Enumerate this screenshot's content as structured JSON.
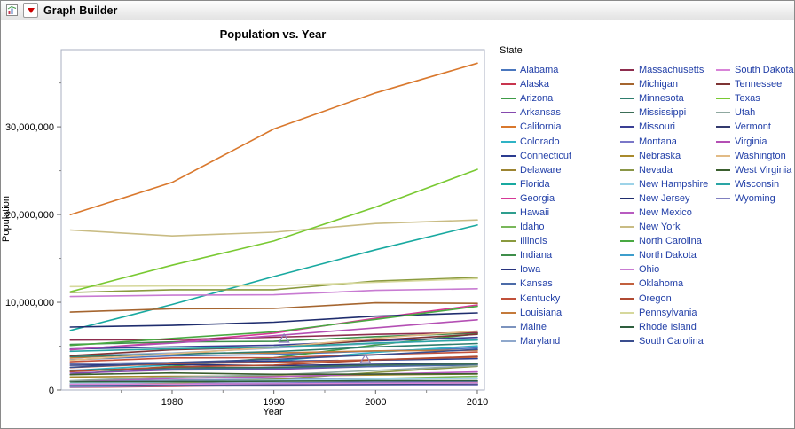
{
  "window": {
    "title": "Graph Builder"
  },
  "colors": {
    "red_triangle": "#CC0000",
    "legend_text": "#2340A8",
    "plot_frame": "#A8AFC0"
  },
  "chart_data": {
    "type": "line",
    "title": "Population vs. Year",
    "xlabel": "Year",
    "ylabel": "Population",
    "legend_title": "State",
    "legend_position": "right",
    "grid": false,
    "xlim": [
      1969.1,
      2010.7
    ],
    "ylim": [
      0,
      38800000
    ],
    "x_ticks": [
      1980,
      1990,
      2000,
      2010
    ],
    "x_tick_labels": [
      "1980",
      "1990",
      "2000",
      "2010"
    ],
    "x_minor_ticks": [
      1975,
      1985,
      1995,
      2005
    ],
    "y_ticks": [
      0,
      10000000,
      20000000,
      30000000
    ],
    "y_tick_labels": [
      "0",
      "10,000,000",
      "20,000,000",
      "30,000,000"
    ],
    "x": [
      1970,
      1980,
      1990,
      2000,
      2010
    ],
    "series": [
      {
        "name": "Alabama",
        "color": "#4A77BE",
        "values": [
          3444000,
          3894000,
          4040000,
          4447000,
          4780000
        ]
      },
      {
        "name": "Alaska",
        "color": "#C8354E",
        "values": [
          300000,
          402000,
          550000,
          627000,
          710000
        ]
      },
      {
        "name": "Arizona",
        "color": "#3E9B47",
        "values": [
          1771000,
          2718000,
          3665000,
          5131000,
          6392000
        ]
      },
      {
        "name": "Arkansas",
        "color": "#8549AE",
        "values": [
          1923000,
          2286000,
          2351000,
          2673000,
          2916000
        ]
      },
      {
        "name": "California",
        "color": "#D9782D",
        "values": [
          19971000,
          23668000,
          29760000,
          33872000,
          37254000
        ]
      },
      {
        "name": "Colorado",
        "color": "#2FB3C5",
        "values": [
          2207000,
          2890000,
          3294000,
          4301000,
          5029000
        ]
      },
      {
        "name": "Connecticut",
        "color": "#2B3C90",
        "values": [
          3032000,
          3108000,
          3287000,
          3406000,
          3574000
        ]
      },
      {
        "name": "Delaware",
        "color": "#9C8431",
        "values": [
          548000,
          594000,
          666000,
          784000,
          898000
        ]
      },
      {
        "name": "Florida",
        "color": "#18A9A0",
        "values": [
          6789000,
          9746000,
          12938000,
          15982000,
          18801000
        ]
      },
      {
        "name": "Georgia",
        "color": "#D63897",
        "values": [
          4588000,
          5463000,
          6478000,
          8186000,
          9688000
        ]
      },
      {
        "name": "Hawaii",
        "color": "#2E9E8E",
        "values": [
          770000,
          965000,
          1108000,
          1212000,
          1360000
        ]
      },
      {
        "name": "Idaho",
        "color": "#79B75A",
        "values": [
          713000,
          944000,
          1007000,
          1294000,
          1568000
        ]
      },
      {
        "name": "Illinois",
        "color": "#8A9A3E",
        "values": [
          11114000,
          11427000,
          11431000,
          12419000,
          12831000
        ]
      },
      {
        "name": "Indiana",
        "color": "#3E8E4A",
        "values": [
          5195000,
          5490000,
          5544000,
          6080000,
          6484000
        ]
      },
      {
        "name": "Iowa",
        "color": "#28337E",
        "values": [
          2825000,
          2914000,
          2777000,
          2926000,
          3046000
        ]
      },
      {
        "name": "Kansas",
        "color": "#4C6BA8",
        "values": [
          2249000,
          2364000,
          2478000,
          2688000,
          2853000
        ]
      },
      {
        "name": "Kentucky",
        "color": "#C1503A",
        "values": [
          3221000,
          3661000,
          3685000,
          4042000,
          4339000
        ]
      },
      {
        "name": "Louisiana",
        "color": "#C47A3B",
        "values": [
          3645000,
          4206000,
          4220000,
          4469000,
          4533000
        ]
      },
      {
        "name": "Maine",
        "color": "#7C93BE",
        "values": [
          994000,
          1125000,
          1228000,
          1275000,
          1328000
        ]
      },
      {
        "name": "Maryland",
        "color": "#8FA8CC",
        "values": [
          3924000,
          4217000,
          4781000,
          5296000,
          5774000
        ]
      },
      {
        "name": "Massachusetts",
        "color": "#8E2D4E",
        "values": [
          5689000,
          5737000,
          6016000,
          6349000,
          6548000
        ]
      },
      {
        "name": "Michigan",
        "color": "#A5652F",
        "values": [
          8882000,
          9262000,
          9295000,
          9938000,
          9884000
        ]
      },
      {
        "name": "Minnesota",
        "color": "#2E7D6E",
        "values": [
          3806000,
          4076000,
          4376000,
          4919000,
          5304000
        ]
      },
      {
        "name": "Mississippi",
        "color": "#3C6E57",
        "values": [
          2217000,
          2521000,
          2573000,
          2845000,
          2967000
        ]
      },
      {
        "name": "Missouri",
        "color": "#3A3F94",
        "values": [
          4678000,
          4917000,
          5117000,
          5595000,
          5989000
        ]
      },
      {
        "name": "Montana",
        "color": "#7A77C8",
        "values": [
          694000,
          787000,
          799000,
          902000,
          989000
        ]
      },
      {
        "name": "Nebraska",
        "color": "#A98A2C",
        "values": [
          1485000,
          1570000,
          1578000,
          1711000,
          1826000
        ]
      },
      {
        "name": "Nevada",
        "color": "#8A9646",
        "values": [
          489000,
          800000,
          1202000,
          1998000,
          2701000
        ]
      },
      {
        "name": "New Hampshire",
        "color": "#9DD3E8",
        "values": [
          738000,
          921000,
          1109000,
          1236000,
          1316000
        ]
      },
      {
        "name": "New Jersey",
        "color": "#1F2D6E",
        "values": [
          7171000,
          7365000,
          7730000,
          8414000,
          8792000
        ]
      },
      {
        "name": "New Mexico",
        "color": "#B85BC0",
        "values": [
          1017000,
          1303000,
          1515000,
          1819000,
          2059000
        ]
      },
      {
        "name": "New York",
        "color": "#C9BC84",
        "values": [
          18241000,
          17558000,
          17990000,
          18976000,
          19378000
        ]
      },
      {
        "name": "North Carolina",
        "color": "#49A942",
        "values": [
          5082000,
          5882000,
          6629000,
          8049000,
          9535000
        ]
      },
      {
        "name": "North Dakota",
        "color": "#3E9ECC",
        "values": [
          618000,
          653000,
          639000,
          642000,
          673000
        ]
      },
      {
        "name": "Ohio",
        "color": "#C87BD2",
        "values": [
          10652000,
          10798000,
          10847000,
          11353000,
          11537000
        ]
      },
      {
        "name": "Oklahoma",
        "color": "#C2603E",
        "values": [
          2559000,
          3025000,
          3146000,
          3451000,
          3751000
        ]
      },
      {
        "name": "Oregon",
        "color": "#B04A32",
        "values": [
          2092000,
          2633000,
          2842000,
          3421000,
          3831000
        ]
      },
      {
        "name": "Pennsylvania",
        "color": "#D6D89C",
        "values": [
          11794000,
          11864000,
          11883000,
          12281000,
          12702000
        ]
      },
      {
        "name": "Rhode Island",
        "color": "#2E5E3E",
        "values": [
          950000,
          947000,
          1003000,
          1048000,
          1053000
        ]
      },
      {
        "name": "South Carolina",
        "color": "#3A4E8E",
        "values": [
          2591000,
          3122000,
          3487000,
          4012000,
          4625000
        ]
      },
      {
        "name": "South Dakota",
        "color": "#D884D8",
        "values": [
          666000,
          691000,
          696000,
          755000,
          814000
        ]
      },
      {
        "name": "Tennessee",
        "color": "#7E3434",
        "values": [
          3924000,
          4591000,
          4877000,
          5689000,
          6346000
        ]
      },
      {
        "name": "Texas",
        "color": "#79C932",
        "values": [
          11197000,
          14229000,
          16987000,
          20852000,
          25146000
        ]
      },
      {
        "name": "Utah",
        "color": "#8FA8A0",
        "values": [
          1059000,
          1461000,
          1723000,
          2233000,
          2764000
        ]
      },
      {
        "name": "Vermont",
        "color": "#333A6E",
        "values": [
          445000,
          511000,
          563000,
          609000,
          626000
        ]
      },
      {
        "name": "Virginia",
        "color": "#B44FB4",
        "values": [
          4648000,
          5347000,
          6187000,
          7079000,
          8001000
        ]
      },
      {
        "name": "Washington",
        "color": "#E2BB86",
        "values": [
          3409000,
          4132000,
          4867000,
          5894000,
          6725000
        ]
      },
      {
        "name": "West Virginia",
        "color": "#3A5E2E",
        "values": [
          1744000,
          1950000,
          1793000,
          1808000,
          1853000
        ]
      },
      {
        "name": "Wisconsin",
        "color": "#2AA5A5",
        "values": [
          4418000,
          4706000,
          4892000,
          5364000,
          5687000
        ]
      },
      {
        "name": "Wyoming",
        "color": "#8080C0",
        "values": [
          332000,
          470000,
          454000,
          494000,
          564000
        ]
      }
    ],
    "annotations": [
      {
        "shape": "triangle-up-outline",
        "x": 1991,
        "y": 5860000,
        "color": "#8678B8"
      },
      {
        "shape": "triangle-up-outline",
        "x": 1999,
        "y": 3540000,
        "color": "#9080B8"
      }
    ],
    "legend_columns": [
      20,
      20,
      10
    ]
  }
}
